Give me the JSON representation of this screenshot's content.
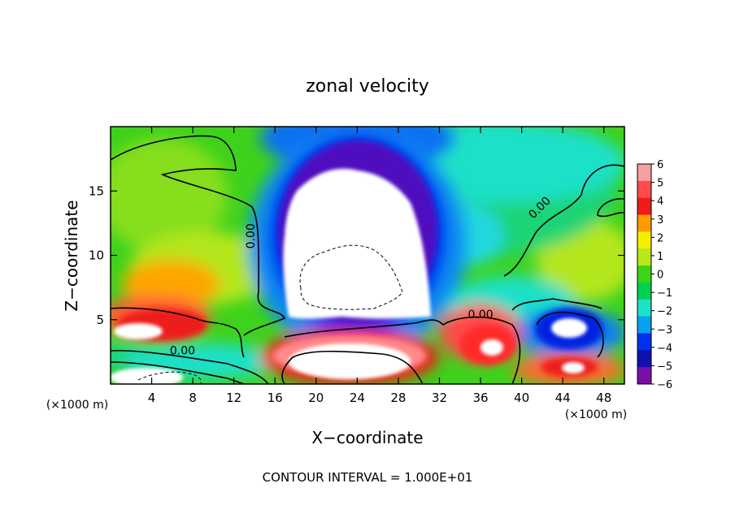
{
  "chart_data": {
    "type": "heatmap",
    "title": "zonal velocity",
    "xlabel": "X−coordinate",
    "ylabel": "Z−coordinate",
    "x_unit_left": "(×1000 m)",
    "x_unit_right": "(×1000 m)",
    "footer": "CONTOUR INTERVAL = 1.000E+01",
    "xlim": [
      0,
      50
    ],
    "ylim": [
      0,
      20
    ],
    "x_ticks": [
      4,
      8,
      12,
      16,
      20,
      24,
      28,
      32,
      36,
      40,
      44,
      48
    ],
    "y_ticks": [
      5,
      10,
      15
    ],
    "colorbar": {
      "ticks": [
        "6",
        "5",
        "4",
        "3",
        "2",
        "1",
        "0",
        "−1",
        "−2",
        "−3",
        "−4",
        "−5",
        "−6"
      ],
      "levels": [
        6,
        5,
        4,
        3,
        2,
        1,
        0,
        -1,
        -2,
        -3,
        -4,
        -5,
        -6
      ],
      "colors": [
        "#f5a0a0",
        "#ff4b4b",
        "#ee1c1c",
        "#ff9a00",
        "#f5ee00",
        "#b6e81c",
        "#3cd414",
        "#00d050",
        "#1ce0c8",
        "#0aa0f0",
        "#0030f0",
        "#1010b0",
        "#7a0ea8"
      ]
    },
    "contour_labels": [
      "0.00",
      "0.00",
      "0.00",
      "0.00"
    ],
    "contour_label_positions": [
      [
        14,
        11.5
      ],
      [
        7,
        2.3
      ],
      [
        36,
        5.1
      ],
      [
        42,
        13.5
      ]
    ]
  }
}
